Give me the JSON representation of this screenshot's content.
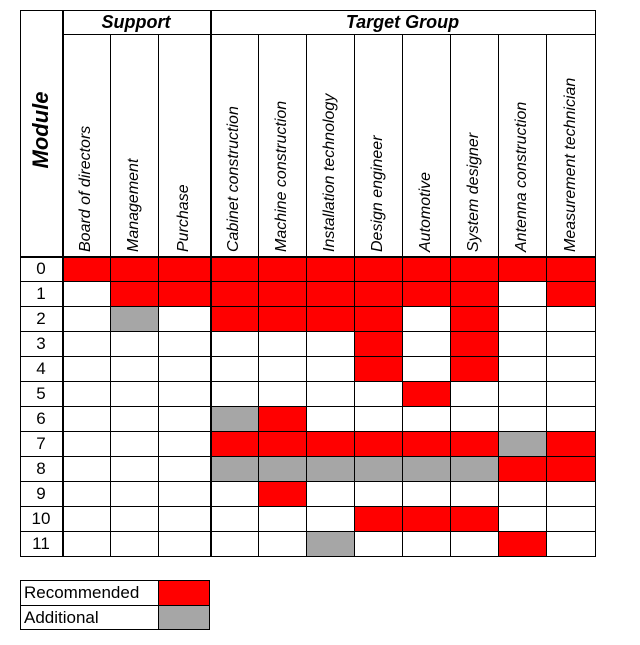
{
  "groups": {
    "support": "Support",
    "target": "Target Group"
  },
  "module_title": "Module",
  "columns": [
    "Board of directors",
    "Management",
    "Purchase",
    "Cabinet construction",
    "Machine construction",
    "Installation technology",
    "Design engineer",
    "Automotive",
    "System designer",
    "Antenna construction",
    "Measurement technician"
  ],
  "rows": [
    {
      "label": "0",
      "cells": [
        "R",
        "R",
        "R",
        "R",
        "R",
        "R",
        "R",
        "R",
        "R",
        "R",
        "R"
      ]
    },
    {
      "label": "1",
      "cells": [
        "",
        "R",
        "R",
        "R",
        "R",
        "R",
        "R",
        "R",
        "R",
        "",
        "R"
      ]
    },
    {
      "label": "2",
      "cells": [
        "",
        "G",
        "",
        "R",
        "R",
        "R",
        "R",
        "",
        "R",
        "",
        ""
      ]
    },
    {
      "label": "3",
      "cells": [
        "",
        "",
        "",
        "",
        "",
        "",
        "R",
        "",
        "R",
        "",
        ""
      ]
    },
    {
      "label": "4",
      "cells": [
        "",
        "",
        "",
        "",
        "",
        "",
        "R",
        "",
        "R",
        "",
        ""
      ]
    },
    {
      "label": "5",
      "cells": [
        "",
        "",
        "",
        "",
        "",
        "",
        "",
        "R",
        "",
        "",
        ""
      ]
    },
    {
      "label": "6",
      "cells": [
        "",
        "",
        "",
        "G",
        "R",
        "",
        "",
        "",
        "",
        "",
        ""
      ]
    },
    {
      "label": "7",
      "cells": [
        "",
        "",
        "",
        "R",
        "R",
        "R",
        "R",
        "R",
        "R",
        "G",
        "R"
      ]
    },
    {
      "label": "8",
      "cells": [
        "",
        "",
        "",
        "G",
        "G",
        "G",
        "G",
        "G",
        "G",
        "R",
        "R"
      ]
    },
    {
      "label": "9",
      "cells": [
        "",
        "",
        "",
        "",
        "R",
        "",
        "",
        "",
        "",
        "",
        ""
      ]
    },
    {
      "label": "10",
      "cells": [
        "",
        "",
        "",
        "",
        "",
        "",
        "R",
        "R",
        "R",
        "",
        ""
      ]
    },
    {
      "label": "11",
      "cells": [
        "",
        "",
        "",
        "",
        "",
        "G",
        "",
        "",
        "",
        "R",
        ""
      ]
    }
  ],
  "legend": [
    {
      "label": "Recommended",
      "color": "#ff0000"
    },
    {
      "label": "Additional",
      "color": "#a6a6a6"
    }
  ],
  "colors": {
    "recommended": "#ff0000",
    "additional": "#a6a6a6",
    "grid": "#000000"
  }
}
